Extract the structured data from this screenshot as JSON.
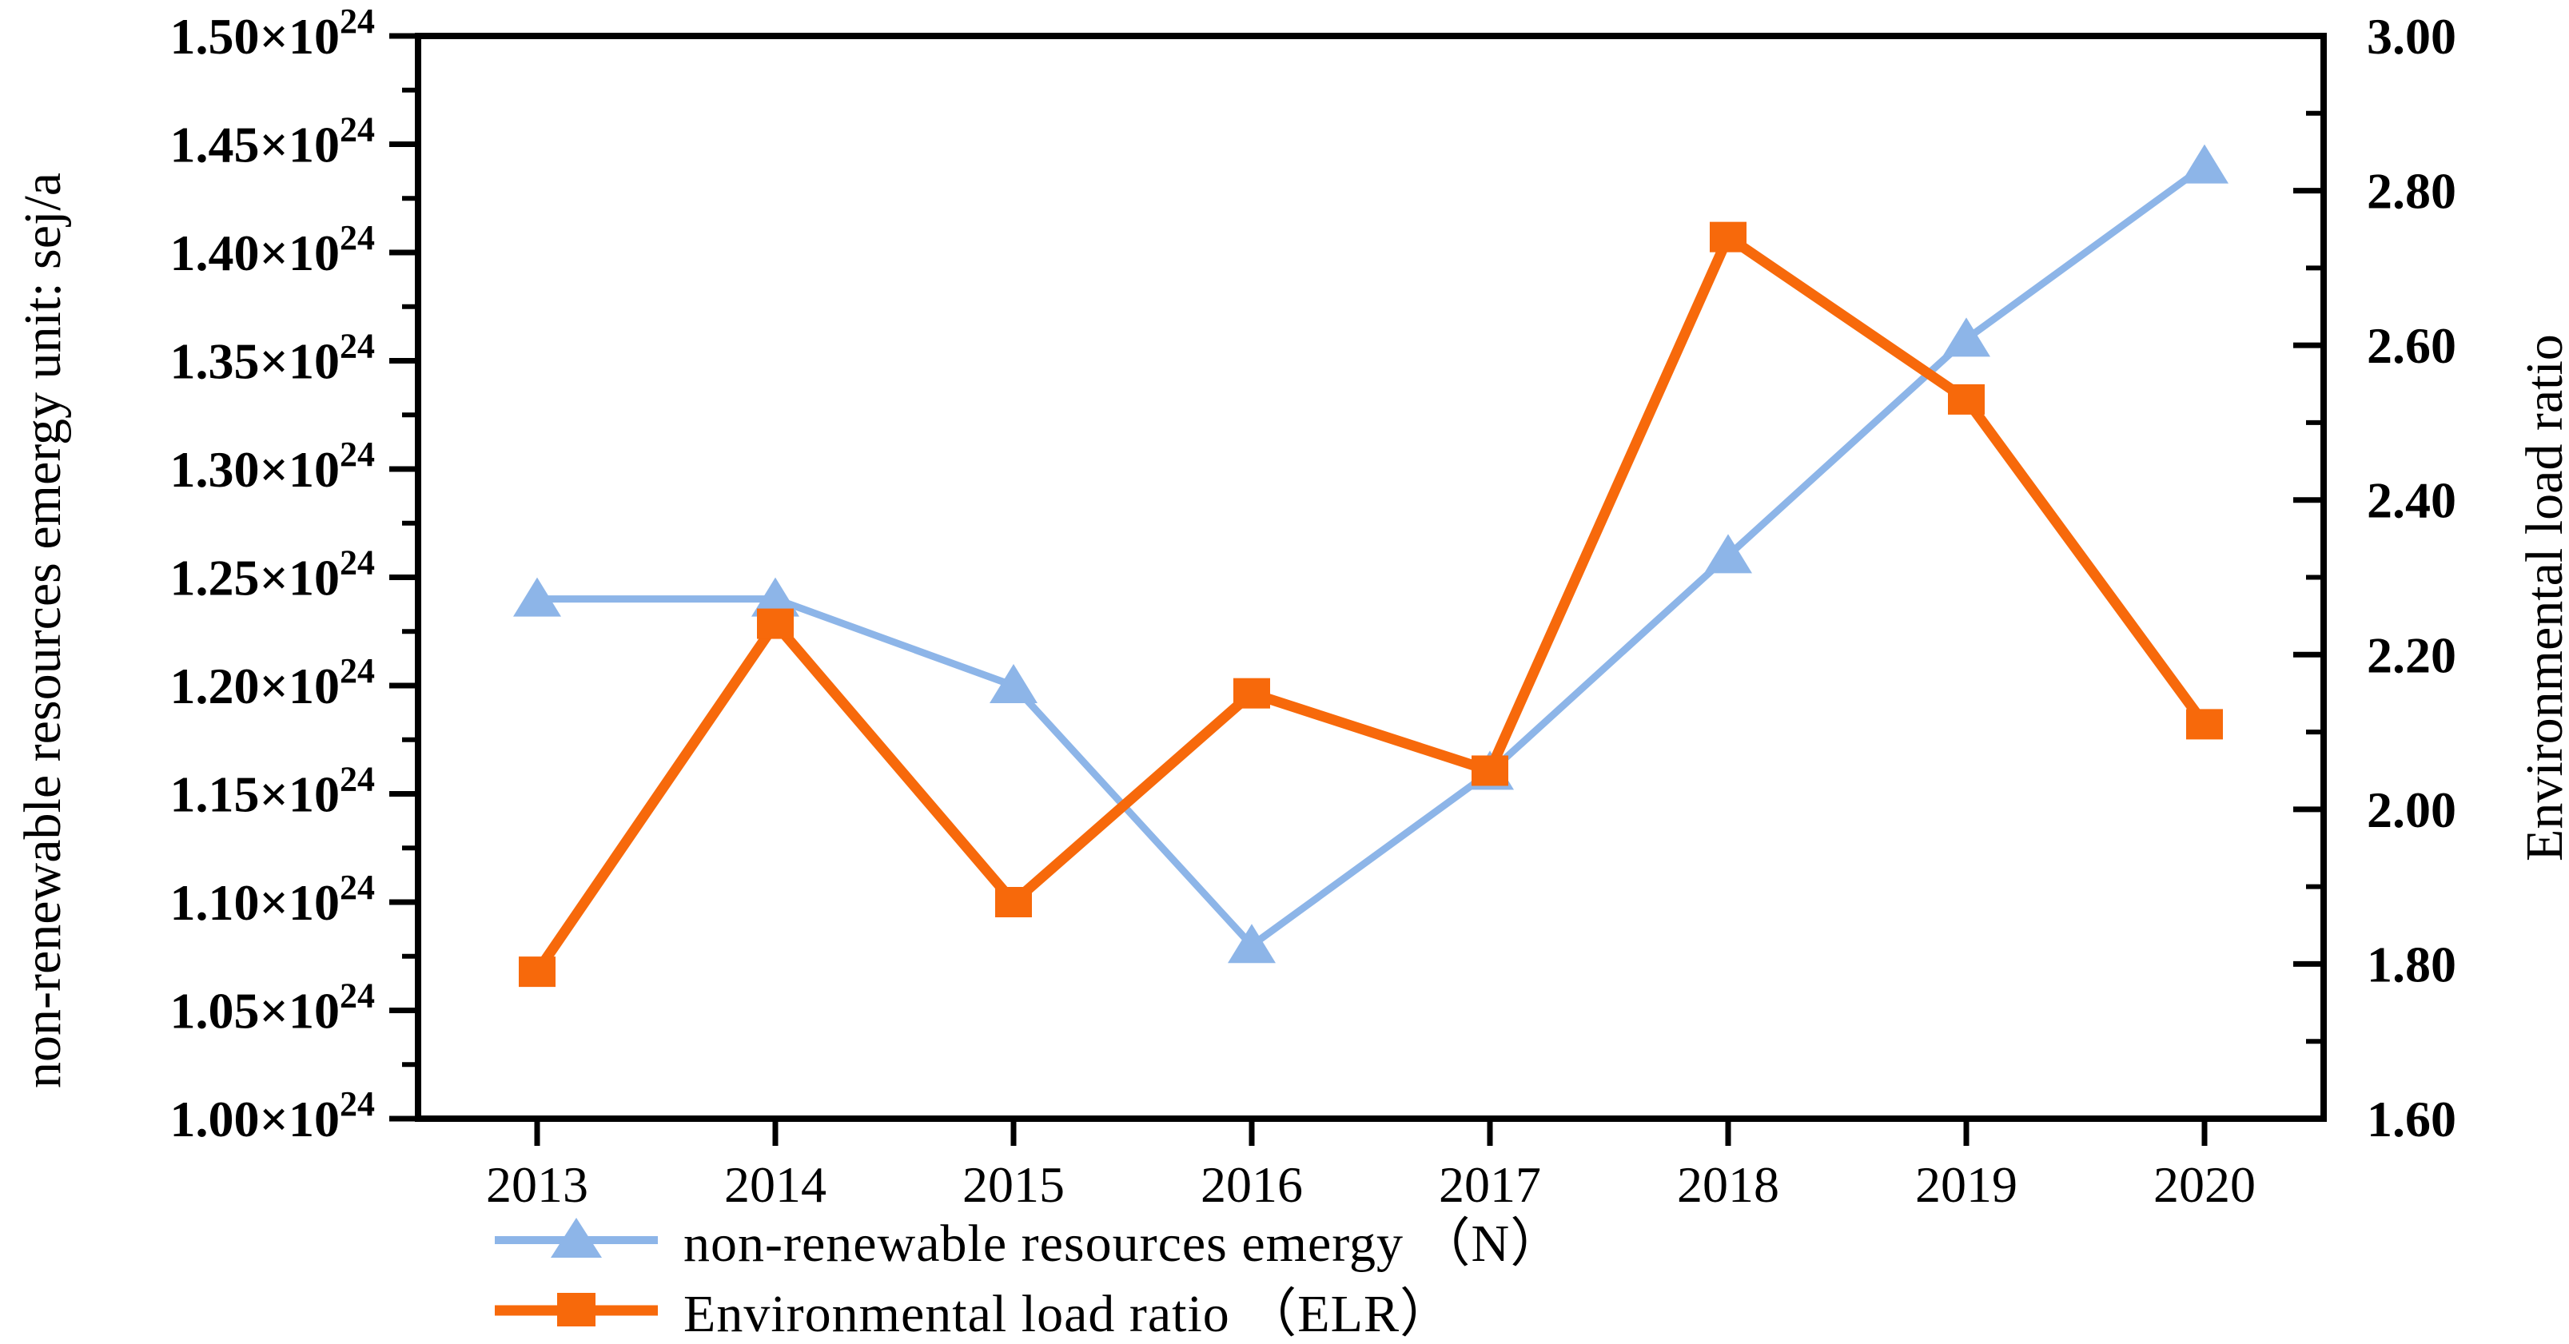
{
  "chart_data": {
    "type": "line",
    "categories": [
      "2013",
      "2014",
      "2015",
      "2016",
      "2017",
      "2018",
      "2019",
      "2020"
    ],
    "series": [
      {
        "name": "non-renewable resources emergy （N）",
        "axis": "left",
        "color": "#8db5e8",
        "marker": "triangle",
        "values": [
          1.24,
          1.24,
          1.2,
          1.08,
          1.16,
          1.26,
          1.36,
          1.44
        ],
        "values_unit": "×10^24 sej/a"
      },
      {
        "name": "Environmental load ratio （ELR）",
        "axis": "right",
        "color": "#f7690b",
        "marker": "square",
        "values": [
          1.79,
          2.24,
          1.88,
          2.15,
          2.05,
          2.74,
          2.53,
          2.11
        ]
      }
    ],
    "left_axis": {
      "label": "non-renewable resources emergy unit: sej/a",
      "min": 1.0,
      "max": 1.5,
      "major_step": 0.05,
      "minor_step": 0.025,
      "exponent": "24",
      "tick_format": "×10^24"
    },
    "right_axis": {
      "label": "Environmental load ratio",
      "min": 1.6,
      "max": 3.0,
      "major_step": 0.2,
      "minor_step": 0.1
    },
    "legend_position": "bottom-left",
    "grid": false,
    "frame": true,
    "axis_color": "#000000"
  }
}
